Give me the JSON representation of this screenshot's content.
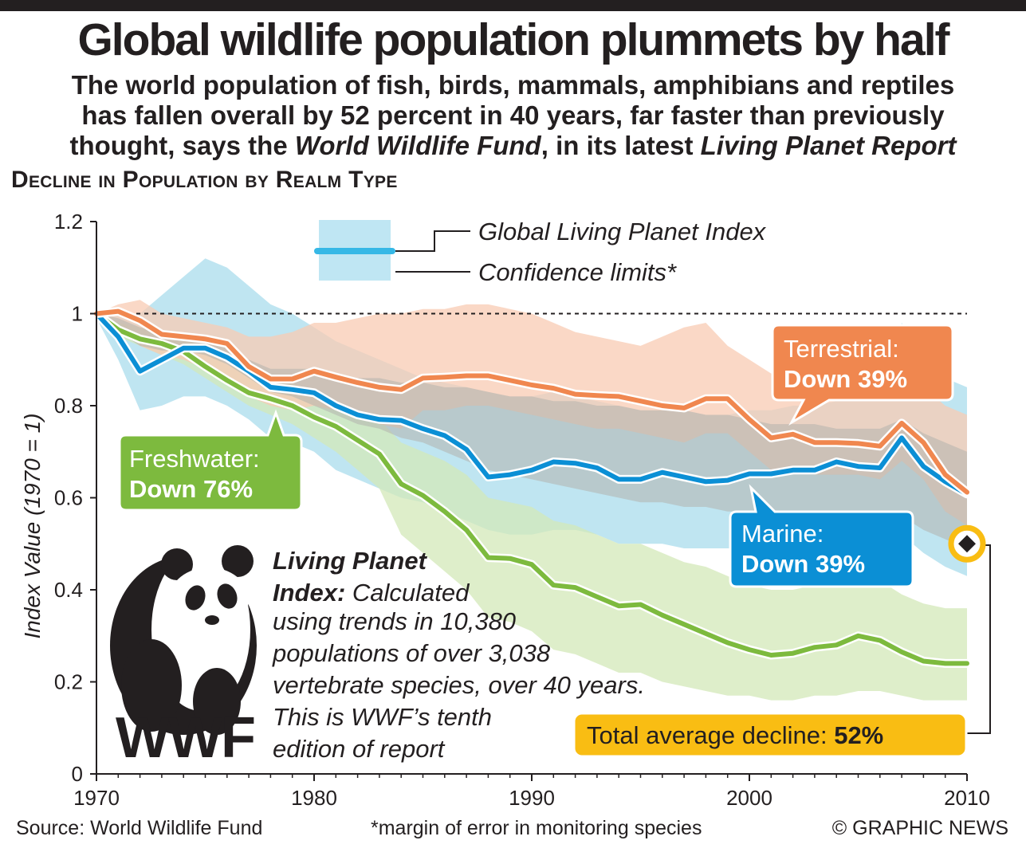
{
  "title": "Global wildlife population plummets by half",
  "subtitle": {
    "line1": "The world population of fish, birds, mammals, amphibians and reptiles",
    "line2": "has fallen overall by 52 percent in 40 years, far faster than previously",
    "line3_prefix": "thought, says the ",
    "line3_org": "World Wildlife Fund",
    "line3_mid": ", in its latest ",
    "line3_report": "Living Planet Report"
  },
  "section_heading": "Decline in Population by Realm Type",
  "legend": {
    "index_label": "Global Living Planet Index",
    "confidence_label": "Confidence limits*"
  },
  "callouts": {
    "terrestrial": {
      "name": "Terrestrial:",
      "value": "Down 39%"
    },
    "freshwater": {
      "name": "Freshwater:",
      "value": "Down 76%"
    },
    "marine": {
      "name": "Marine:",
      "value": "Down 39%"
    },
    "total": {
      "label": "Total average decline: ",
      "value": "52%"
    }
  },
  "lpi_note": {
    "heading_line1": "Living Planet",
    "heading_line2": "Index:",
    "line1_rest": " Calculated",
    "line2": "using trends in 10,380",
    "line3": "populations of over 3,038",
    "line4": "vertebrate species, over 40 years.",
    "line5": "This is WWF’s tenth",
    "line6": "edition of report"
  },
  "logo_text": "WWF",
  "footer": {
    "source": "Source: World Wildlife Fund",
    "note": "*margin of error in monitoring species",
    "credit": "© GRAPHIC NEWS"
  },
  "colors": {
    "terrestrial": "#f0874f",
    "freshwater": "#7dba3e",
    "marine": "#0b8fd5",
    "global": "#36b8e6",
    "total_badge": "#f9bd13",
    "terrestrial_band": "#f8cbb3",
    "freshwater_band": "#d3e8b8",
    "marine_band": "#a9dcec",
    "global_band": "#b3b3ad"
  },
  "chart_data": {
    "type": "line",
    "title": "Decline in Population by Realm Type",
    "xlabel": "",
    "ylabel": "Index Value (1970 = 1)",
    "xlim": [
      1970,
      2010
    ],
    "ylim": [
      0,
      1.2
    ],
    "x_ticks": [
      "1970",
      "1980",
      "1990",
      "2000",
      "2010"
    ],
    "y_ticks": [
      "0",
      "0.2",
      "0.4",
      "0.6",
      "0.8",
      "1",
      "1.2"
    ],
    "reference_line": 1,
    "x": [
      1970,
      1971,
      1972,
      1973,
      1974,
      1975,
      1976,
      1977,
      1978,
      1979,
      1980,
      1981,
      1982,
      1983,
      1984,
      1985,
      1986,
      1987,
      1988,
      1989,
      1990,
      1991,
      1992,
      1993,
      1994,
      1995,
      1996,
      1997,
      1998,
      1999,
      2000,
      2001,
      2002,
      2003,
      2004,
      2005,
      2006,
      2007,
      2008,
      2009,
      2010
    ],
    "series": [
      {
        "name": "Terrestrial",
        "values": [
          1.0,
          1.005,
          0.985,
          0.955,
          0.95,
          0.945,
          0.935,
          0.885,
          0.858,
          0.858,
          0.875,
          0.862,
          0.85,
          0.84,
          0.835,
          0.86,
          0.862,
          0.865,
          0.865,
          0.855,
          0.845,
          0.838,
          0.825,
          0.822,
          0.82,
          0.81,
          0.8,
          0.795,
          0.815,
          0.815,
          0.77,
          0.73,
          0.738,
          0.72,
          0.72,
          0.718,
          0.712,
          0.762,
          0.72,
          0.65,
          0.612
        ],
        "lower": [
          0.99,
          0.98,
          0.93,
          0.91,
          0.9,
          0.88,
          0.86,
          0.82,
          0.8,
          0.79,
          0.8,
          0.79,
          0.78,
          0.76,
          0.75,
          0.79,
          0.79,
          0.8,
          0.8,
          0.79,
          0.78,
          0.77,
          0.76,
          0.75,
          0.75,
          0.74,
          0.73,
          0.72,
          0.74,
          0.74,
          0.7,
          0.66,
          0.66,
          0.65,
          0.65,
          0.65,
          0.64,
          0.68,
          0.64,
          0.57,
          0.54
        ],
        "upper": [
          1.0,
          1.02,
          1.03,
          1.0,
          0.99,
          0.98,
          0.97,
          0.95,
          0.95,
          0.96,
          0.98,
          0.98,
          0.99,
          1.0,
          1.0,
          1.01,
          1.01,
          1.02,
          1.02,
          1.01,
          1.0,
          0.98,
          0.96,
          0.95,
          0.94,
          0.93,
          0.95,
          0.97,
          0.98,
          0.93,
          0.9,
          0.87,
          0.87,
          0.86,
          0.86,
          0.85,
          0.85,
          0.87,
          0.84,
          0.8,
          0.78
        ]
      },
      {
        "name": "Marine",
        "values": [
          1.0,
          0.95,
          0.875,
          0.9,
          0.925,
          0.925,
          0.905,
          0.875,
          0.84,
          0.835,
          0.828,
          0.8,
          0.78,
          0.77,
          0.768,
          0.75,
          0.735,
          0.705,
          0.645,
          0.65,
          0.66,
          0.678,
          0.675,
          0.665,
          0.64,
          0.64,
          0.655,
          0.645,
          0.635,
          0.638,
          0.652,
          0.652,
          0.66,
          0.66,
          0.678,
          0.668,
          0.665,
          0.73,
          0.668,
          0.635,
          0.608
        ],
        "lower": [
          0.99,
          0.9,
          0.79,
          0.8,
          0.82,
          0.82,
          0.8,
          0.77,
          0.73,
          0.72,
          0.7,
          0.66,
          0.64,
          0.62,
          0.6,
          0.59,
          0.57,
          0.55,
          0.53,
          0.52,
          0.52,
          0.53,
          0.53,
          0.52,
          0.5,
          0.5,
          0.5,
          0.49,
          0.49,
          0.49,
          0.49,
          0.49,
          0.49,
          0.49,
          0.49,
          0.49,
          0.48,
          0.52,
          0.48,
          0.45,
          0.43
        ],
        "upper": [
          1.0,
          1.0,
          1.0,
          1.04,
          1.08,
          1.12,
          1.1,
          1.06,
          1.02,
          1.0,
          0.97,
          0.94,
          0.92,
          0.9,
          0.88,
          0.86,
          0.85,
          0.84,
          0.83,
          0.82,
          0.82,
          0.83,
          0.82,
          0.81,
          0.8,
          0.79,
          0.79,
          0.79,
          0.78,
          0.78,
          0.79,
          0.79,
          0.8,
          0.8,
          0.81,
          0.81,
          0.81,
          0.98,
          0.9,
          0.86,
          0.84
        ]
      },
      {
        "name": "Freshwater",
        "values": [
          1.0,
          0.965,
          0.945,
          0.935,
          0.918,
          0.885,
          0.855,
          0.828,
          0.815,
          0.8,
          0.775,
          0.755,
          0.725,
          0.695,
          0.63,
          0.605,
          0.57,
          0.53,
          0.47,
          0.468,
          0.455,
          0.41,
          0.405,
          0.385,
          0.365,
          0.368,
          0.345,
          0.325,
          0.305,
          0.285,
          0.27,
          0.258,
          0.262,
          0.275,
          0.28,
          0.3,
          0.29,
          0.265,
          0.245,
          0.24,
          0.24
        ],
        "lower": [
          0.99,
          0.95,
          0.93,
          0.91,
          0.89,
          0.86,
          0.83,
          0.8,
          0.78,
          0.76,
          0.73,
          0.7,
          0.66,
          0.62,
          0.52,
          0.48,
          0.44,
          0.4,
          0.34,
          0.33,
          0.31,
          0.27,
          0.26,
          0.24,
          0.22,
          0.22,
          0.2,
          0.19,
          0.18,
          0.17,
          0.17,
          0.16,
          0.16,
          0.17,
          0.17,
          0.18,
          0.18,
          0.17,
          0.16,
          0.16,
          0.16
        ],
        "upper": [
          1.0,
          0.98,
          0.97,
          0.96,
          0.95,
          0.92,
          0.89,
          0.87,
          0.86,
          0.85,
          0.83,
          0.81,
          0.79,
          0.77,
          0.72,
          0.7,
          0.68,
          0.65,
          0.6,
          0.59,
          0.58,
          0.55,
          0.54,
          0.52,
          0.5,
          0.5,
          0.48,
          0.46,
          0.45,
          0.43,
          0.41,
          0.4,
          0.4,
          0.41,
          0.41,
          0.43,
          0.42,
          0.39,
          0.37,
          0.36,
          0.36
        ]
      }
    ],
    "global_confidence": {
      "lower": [
        0.99,
        0.96,
        0.93,
        0.92,
        0.92,
        0.91,
        0.89,
        0.86,
        0.83,
        0.82,
        0.8,
        0.78,
        0.76,
        0.75,
        0.73,
        0.72,
        0.7,
        0.68,
        0.66,
        0.65,
        0.64,
        0.63,
        0.62,
        0.61,
        0.6,
        0.59,
        0.59,
        0.58,
        0.58,
        0.57,
        0.57,
        0.56,
        0.56,
        0.56,
        0.56,
        0.55,
        0.55,
        0.56,
        0.53,
        0.51,
        0.49
      ],
      "upper": [
        1.0,
        0.99,
        0.97,
        0.96,
        0.95,
        0.94,
        0.93,
        0.9,
        0.88,
        0.88,
        0.88,
        0.87,
        0.86,
        0.86,
        0.85,
        0.85,
        0.84,
        0.84,
        0.83,
        0.82,
        0.82,
        0.81,
        0.81,
        0.8,
        0.8,
        0.79,
        0.79,
        0.79,
        0.78,
        0.78,
        0.77,
        0.76,
        0.76,
        0.76,
        0.75,
        0.75,
        0.75,
        0.77,
        0.74,
        0.72,
        0.7
      ]
    },
    "total_average_end": 0.5
  }
}
